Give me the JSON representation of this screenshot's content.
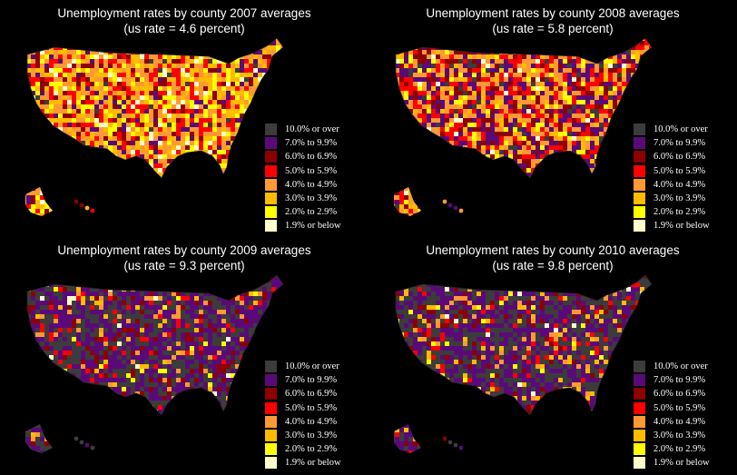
{
  "legend": [
    {
      "label": "10.0% or over",
      "color": "#3c3c3c"
    },
    {
      "label": "7.0% to 9.9%",
      "color": "#5a0a78"
    },
    {
      "label": "6.0% to 6.9%",
      "color": "#8c0000"
    },
    {
      "label": "5.0% to 5.9%",
      "color": "#ff0000"
    },
    {
      "label": "4.0% to 4.9%",
      "color": "#ff9933"
    },
    {
      "label": "3.0% to 3.9%",
      "color": "#ffbb00"
    },
    {
      "label": "2.0% to 2.9%",
      "color": "#ffff00"
    },
    {
      "label": "1.9% or below",
      "color": "#ffffcc"
    }
  ],
  "maps": [
    {
      "title_line1": "Unemployment rates by county 2007 averages",
      "title_line2": "(us rate = 4.6 percent)",
      "weights": [
        0.01,
        0.06,
        0.08,
        0.17,
        0.25,
        0.22,
        0.15,
        0.06
      ]
    },
    {
      "title_line1": "Unemployment rates by county 2008 averages",
      "title_line2": "(us rate = 5.8 percent)",
      "weights": [
        0.05,
        0.2,
        0.16,
        0.2,
        0.2,
        0.1,
        0.07,
        0.02
      ]
    },
    {
      "title_line1": "Unemployment rates by county 2009 averages",
      "title_line2": "(us rate = 9.3 percent)",
      "weights": [
        0.34,
        0.4,
        0.08,
        0.06,
        0.05,
        0.04,
        0.02,
        0.01
      ]
    },
    {
      "title_line1": "Unemployment rates by county 2010 averages",
      "title_line2": "(us rate = 9.8 percent)",
      "weights": [
        0.38,
        0.38,
        0.07,
        0.05,
        0.05,
        0.04,
        0.02,
        0.01
      ]
    }
  ]
}
